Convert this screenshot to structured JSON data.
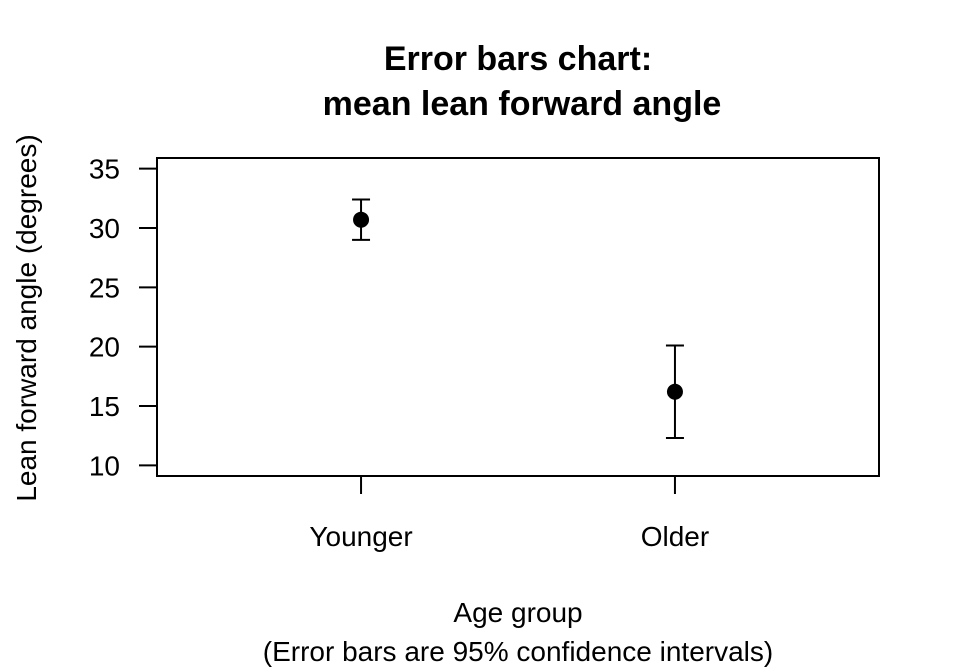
{
  "chart_data": {
    "type": "scatter",
    "title_lines": [
      "Error bars chart:",
      "mean lean forward angle"
    ],
    "xlabel_lines": [
      "Age group",
      "(Error bars are 95% confidence intervals)"
    ],
    "ylabel": "Lean forward angle (degrees)",
    "categories": [
      "Younger",
      "Older"
    ],
    "series": [
      {
        "points": [
          {
            "category": "Younger",
            "mean": 30.7,
            "lower": 29.0,
            "upper": 32.4
          },
          {
            "category": "Older",
            "mean": 16.2,
            "lower": 12.3,
            "upper": 20.1
          }
        ]
      }
    ],
    "ylim": [
      9.1,
      35.9
    ],
    "yticks": [
      10,
      15,
      20,
      25,
      30,
      35
    ],
    "grid": false,
    "legend": "none",
    "colors": {
      "marker": "#000000",
      "error_bar": "#000000",
      "background": "#ffffff"
    }
  }
}
